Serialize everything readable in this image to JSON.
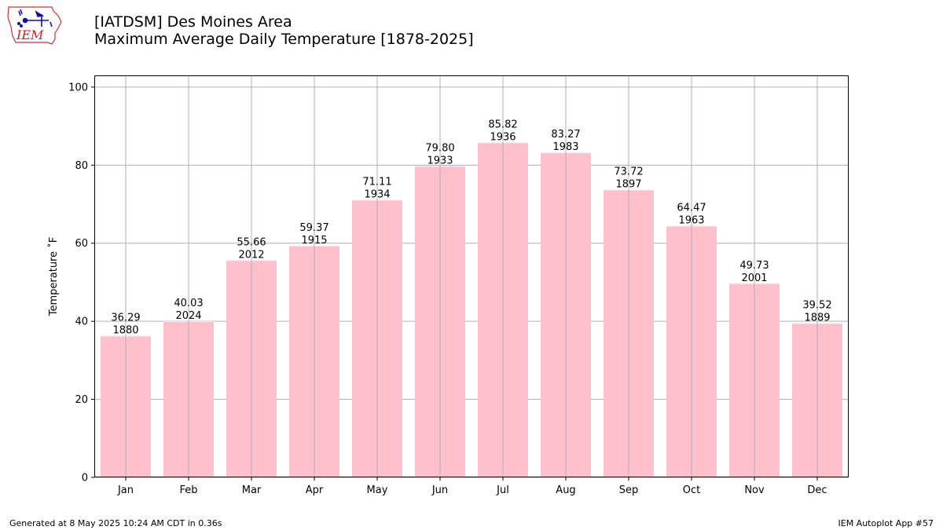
{
  "logo": {
    "text": "IEM",
    "colors": {
      "outline": "#cc3333",
      "text": "#cc2222",
      "symbol": "#1111aa"
    }
  },
  "header": {
    "title_line1": "[IATDSM] Des Moines Area",
    "title_line2": "Maximum Average Daily Temperature [1878-2025]"
  },
  "footer": {
    "left": "Generated at 8 May 2025 10:24 AM CDT in 0.36s",
    "right": "IEM Autoplot App #57"
  },
  "chart_data": {
    "type": "bar",
    "categories": [
      "Jan",
      "Feb",
      "Mar",
      "Apr",
      "May",
      "Jun",
      "Jul",
      "Aug",
      "Sep",
      "Oct",
      "Nov",
      "Dec"
    ],
    "values": [
      36.29,
      40.03,
      55.66,
      59.37,
      71.11,
      79.8,
      85.82,
      83.27,
      73.72,
      64.47,
      49.73,
      39.52
    ],
    "value_labels": [
      "36.29",
      "40.03",
      "55.66",
      "59.37",
      "71.11",
      "79.80",
      "85.82",
      "83.27",
      "73.72",
      "64.47",
      "49.73",
      "39.52"
    ],
    "years": [
      "1880",
      "2024",
      "2012",
      "1915",
      "1934",
      "1933",
      "1936",
      "1983",
      "1897",
      "1963",
      "2001",
      "1889"
    ],
    "ylabel": "Temperature $^\\circ$F",
    "ylabel_display": "Temperature ˚F",
    "ylim": [
      0,
      103
    ],
    "yticks": [
      0,
      20,
      40,
      60,
      80,
      100
    ],
    "grid": true,
    "colors": {
      "bar": "#ffc0cb",
      "grid": "#b0b0b0",
      "axis": "#000000"
    }
  }
}
